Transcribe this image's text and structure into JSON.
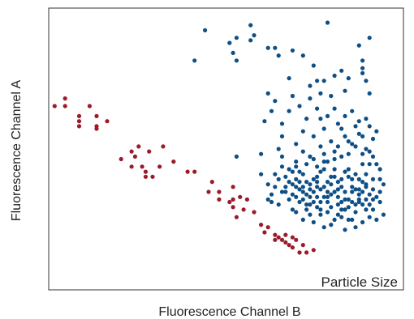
{
  "chart_data": {
    "type": "scatter",
    "title": "",
    "xlabel": "Fluorescence Channel B",
    "ylabel": "Fluorescence Channel A",
    "annotation": "Particle Size",
    "xlim": [
      0,
      100
    ],
    "ylim": [
      0,
      100
    ],
    "grid": false,
    "legend": "none",
    "series": [
      {
        "color": "#9b1b2a",
        "points": [
          [
            1,
            67
          ],
          [
            4,
            70
          ],
          [
            4,
            67
          ],
          [
            8,
            63
          ],
          [
            8,
            61
          ],
          [
            8,
            59
          ],
          [
            11,
            67
          ],
          [
            13,
            63
          ],
          [
            13,
            59
          ],
          [
            13,
            58
          ],
          [
            16,
            61
          ],
          [
            20,
            46
          ],
          [
            23,
            49
          ],
          [
            24,
            47
          ],
          [
            25,
            51
          ],
          [
            23,
            43
          ],
          [
            26,
            43
          ],
          [
            27,
            41
          ],
          [
            27,
            39
          ],
          [
            28,
            49
          ],
          [
            29,
            39
          ],
          [
            31,
            43
          ],
          [
            32,
            51
          ],
          [
            35,
            45
          ],
          [
            39,
            41
          ],
          [
            41,
            41
          ],
          [
            45,
            33
          ],
          [
            46,
            37
          ],
          [
            48,
            30
          ],
          [
            48,
            33
          ],
          [
            51,
            29
          ],
          [
            52,
            27
          ],
          [
            52,
            30
          ],
          [
            52,
            35
          ],
          [
            53,
            23
          ],
          [
            54,
            31
          ],
          [
            55,
            26
          ],
          [
            56,
            30
          ],
          [
            58,
            25
          ],
          [
            60,
            20
          ],
          [
            61,
            17
          ],
          [
            62,
            19
          ],
          [
            64,
            16
          ],
          [
            64,
            14
          ],
          [
            65,
            15
          ],
          [
            66,
            14
          ],
          [
            67,
            16
          ],
          [
            67,
            13
          ],
          [
            68,
            12
          ],
          [
            69,
            11
          ],
          [
            69,
            15
          ],
          [
            70,
            14
          ],
          [
            71,
            9
          ],
          [
            72,
            12
          ],
          [
            73,
            9
          ],
          [
            75,
            10
          ]
        ]
      },
      {
        "color": "#0e4f86",
        "points": [
          [
            41,
            85
          ],
          [
            44,
            97
          ],
          [
            51,
            92
          ],
          [
            52,
            88
          ],
          [
            53,
            94
          ],
          [
            57,
            99
          ],
          [
            57,
            93
          ],
          [
            58,
            95
          ],
          [
            53,
            85
          ],
          [
            62,
            90
          ],
          [
            64,
            90
          ],
          [
            65,
            87
          ],
          [
            68,
            78
          ],
          [
            69,
            89
          ],
          [
            72,
            87
          ],
          [
            74,
            75
          ],
          [
            75,
            83
          ],
          [
            76,
            77
          ],
          [
            77,
            72
          ],
          [
            78,
            77
          ],
          [
            79,
            100
          ],
          [
            81,
            79
          ],
          [
            83,
            81
          ],
          [
            84,
            73
          ],
          [
            85,
            78
          ],
          [
            88,
            91
          ],
          [
            89,
            85
          ],
          [
            89,
            82
          ],
          [
            89,
            80
          ],
          [
            90,
            77
          ],
          [
            91,
            94
          ],
          [
            91,
            72
          ],
          [
            53,
            47
          ],
          [
            60,
            48
          ],
          [
            61,
            61
          ],
          [
            62,
            72
          ],
          [
            63,
            65
          ],
          [
            64,
            69
          ],
          [
            65,
            50
          ],
          [
            66,
            60
          ],
          [
            66,
            55
          ],
          [
            68,
            65
          ],
          [
            69,
            71
          ],
          [
            70,
            45
          ],
          [
            70,
            52
          ],
          [
            71,
            67
          ],
          [
            72,
            57
          ],
          [
            73,
            62
          ],
          [
            74,
            70
          ],
          [
            75,
            55
          ],
          [
            76,
            66
          ],
          [
            77,
            62
          ],
          [
            78,
            58
          ],
          [
            79,
            63
          ],
          [
            80,
            71
          ],
          [
            81,
            66
          ],
          [
            82,
            60
          ],
          [
            83,
            58
          ],
          [
            84,
            63
          ],
          [
            85,
            53
          ],
          [
            86,
            65
          ],
          [
            87,
            59
          ],
          [
            88,
            61
          ],
          [
            89,
            55
          ],
          [
            90,
            62
          ],
          [
            91,
            59
          ],
          [
            92,
            54
          ],
          [
            93,
            57
          ],
          [
            62,
            36
          ],
          [
            63,
            32
          ],
          [
            64,
            40
          ],
          [
            65,
            28
          ],
          [
            66,
            43
          ],
          [
            67,
            35
          ],
          [
            68,
            30
          ],
          [
            69,
            41
          ],
          [
            70,
            25
          ],
          [
            71,
            37
          ],
          [
            72,
            33
          ],
          [
            73,
            44
          ],
          [
            74,
            28
          ],
          [
            75,
            21
          ],
          [
            76,
            39
          ],
          [
            77,
            34
          ],
          [
            78,
            45
          ],
          [
            79,
            29
          ],
          [
            80,
            36
          ],
          [
            81,
            42
          ],
          [
            82,
            31
          ],
          [
            83,
            38
          ],
          [
            84,
            26
          ],
          [
            85,
            48
          ],
          [
            86,
            33
          ],
          [
            87,
            40
          ],
          [
            88,
            29
          ],
          [
            89,
            44
          ],
          [
            90,
            35
          ],
          [
            91,
            49
          ],
          [
            92,
            38
          ],
          [
            93,
            31
          ],
          [
            94,
            42
          ],
          [
            95,
            36
          ],
          [
            66,
            47
          ],
          [
            68,
            37
          ],
          [
            70,
            31
          ],
          [
            72,
            40
          ],
          [
            73,
            28
          ],
          [
            74,
            36
          ],
          [
            75,
            46
          ],
          [
            76,
            31
          ],
          [
            77,
            24
          ],
          [
            78,
            42
          ],
          [
            79,
            33
          ],
          [
            80,
            27
          ],
          [
            81,
            46
          ],
          [
            82,
            37
          ],
          [
            83,
            23
          ],
          [
            84,
            41
          ],
          [
            85,
            30
          ],
          [
            86,
            38
          ],
          [
            87,
            25
          ],
          [
            88,
            34
          ],
          [
            89,
            28
          ],
          [
            90,
            40
          ],
          [
            91,
            32
          ],
          [
            92,
            26
          ],
          [
            93,
            44
          ],
          [
            94,
            33
          ],
          [
            77,
            51
          ],
          [
            79,
            45
          ],
          [
            81,
            49
          ],
          [
            83,
            47
          ],
          [
            85,
            42
          ],
          [
            87,
            51
          ],
          [
            88,
            38
          ],
          [
            89,
            48
          ],
          [
            90,
            30
          ],
          [
            91,
            44
          ],
          [
            92,
            47
          ],
          [
            86,
            22
          ],
          [
            84,
            18
          ],
          [
            80,
            20
          ],
          [
            78,
            19
          ],
          [
            82,
            24
          ],
          [
            76,
            27
          ],
          [
            72,
            22
          ],
          [
            74,
            24
          ],
          [
            71,
            29
          ],
          [
            69,
            26
          ],
          [
            67,
            33
          ],
          [
            65,
            38
          ],
          [
            63,
            29
          ],
          [
            70,
            38
          ],
          [
            72,
            35
          ],
          [
            74,
            31
          ],
          [
            76,
            35
          ],
          [
            78,
            31
          ],
          [
            80,
            32
          ],
          [
            82,
            28
          ],
          [
            84,
            33
          ],
          [
            86,
            29
          ],
          [
            88,
            30
          ],
          [
            90,
            26
          ],
          [
            92,
            34
          ],
          [
            94,
            29
          ],
          [
            95,
            24
          ],
          [
            93,
            22
          ],
          [
            91,
            23
          ],
          [
            89,
            21
          ],
          [
            87,
            19
          ],
          [
            85,
            22
          ],
          [
            83,
            26
          ],
          [
            81,
            22
          ],
          [
            79,
            25
          ],
          [
            77,
            29
          ],
          [
            75,
            33
          ],
          [
            73,
            37
          ],
          [
            71,
            41
          ],
          [
            69,
            36
          ],
          [
            67,
            39
          ],
          [
            86,
            52
          ],
          [
            88,
            56
          ],
          [
            90,
            50
          ],
          [
            84,
            55
          ],
          [
            82,
            51
          ],
          [
            80,
            53
          ],
          [
            78,
            48
          ],
          [
            76,
            43
          ],
          [
            74,
            47
          ],
          [
            72,
            49
          ],
          [
            70,
            43
          ],
          [
            83,
            35
          ],
          [
            85,
            39
          ],
          [
            87,
            34
          ],
          [
            89,
            37
          ],
          [
            81,
            39
          ],
          [
            79,
            37
          ],
          [
            77,
            41
          ],
          [
            75,
            38
          ],
          [
            73,
            32
          ],
          [
            71,
            34
          ],
          [
            69,
            32
          ],
          [
            87,
            28
          ],
          [
            89,
            33
          ],
          [
            91,
            28
          ],
          [
            85,
            27
          ],
          [
            83,
            29
          ],
          [
            81,
            33
          ],
          [
            79,
            31
          ],
          [
            77,
            26
          ],
          [
            75,
            29
          ],
          [
            73,
            26
          ],
          [
            84,
            30
          ],
          [
            86,
            35
          ],
          [
            88,
            32
          ],
          [
            90,
            36
          ],
          [
            92,
            30
          ],
          [
            94,
            38
          ],
          [
            82,
            34
          ],
          [
            80,
            39
          ],
          [
            78,
            35
          ],
          [
            76,
            37
          ],
          [
            74,
            34
          ],
          [
            72,
            30
          ],
          [
            70,
            35
          ],
          [
            68,
            42
          ],
          [
            66,
            33
          ],
          [
            64,
            35
          ],
          [
            62,
            30
          ],
          [
            60,
            40
          ]
        ]
      }
    ]
  }
}
